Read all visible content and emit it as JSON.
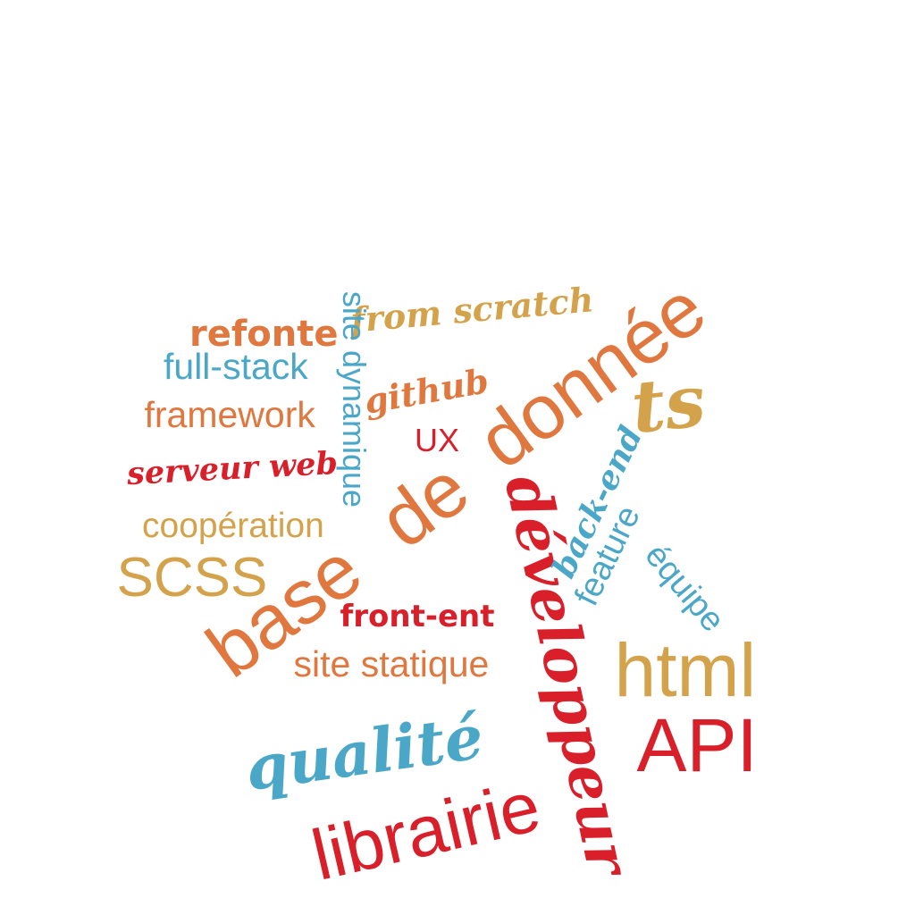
{
  "colors": {
    "red": "#d81f2a",
    "orange": "#e0773e",
    "blue": "#4aa7c8",
    "gold": "#d3a24a",
    "background": "#ffffff"
  },
  "words": {
    "developpeur": {
      "text": "développeur",
      "color": "#d81f2a"
    },
    "base": {
      "text": "base",
      "color": "#e0773e"
    },
    "de": {
      "text": "de",
      "color": "#e0773e"
    },
    "donnee": {
      "text": "donnée",
      "color": "#e0773e"
    },
    "librairie": {
      "text": "librairie",
      "color": "#d81f2a"
    },
    "qualite": {
      "text": "qualité",
      "color": "#4aa7c8"
    },
    "html": {
      "text": "html",
      "color": "#d3a24a"
    },
    "api": {
      "text": "API",
      "color": "#d81f2a"
    },
    "scss": {
      "text": "SCSS",
      "color": "#d3a24a"
    },
    "ts": {
      "text": "ts",
      "color": "#d3a24a"
    },
    "site_statique": {
      "text": "site statique",
      "color": "#e0773e"
    },
    "front_ent": {
      "text": "front-ent",
      "color": "#d81f2a"
    },
    "cooperation": {
      "text": "coopération",
      "color": "#d3a24a"
    },
    "framework": {
      "text": "framework",
      "color": "#e0773e"
    },
    "full_stack": {
      "text": "full-stack",
      "color": "#4aa7c8"
    },
    "refonte": {
      "text": "refonte",
      "color": "#e0773e"
    },
    "serveur_web": {
      "text": "serveur web",
      "color": "#d81f2a"
    },
    "from_scratch": {
      "text": "from scratch",
      "color": "#d3a24a"
    },
    "github": {
      "text": "github",
      "color": "#e0773e"
    },
    "ux": {
      "text": "UX",
      "color": "#d81f2a"
    },
    "site_dynamique": {
      "text": "site dynamique",
      "color": "#4aa7c8"
    },
    "back_end": {
      "text": "back-end",
      "color": "#4aa7c8"
    },
    "feature": {
      "text": "feature",
      "color": "#4aa7c8"
    },
    "equipe": {
      "text": "équipe",
      "color": "#4aa7c8"
    }
  }
}
